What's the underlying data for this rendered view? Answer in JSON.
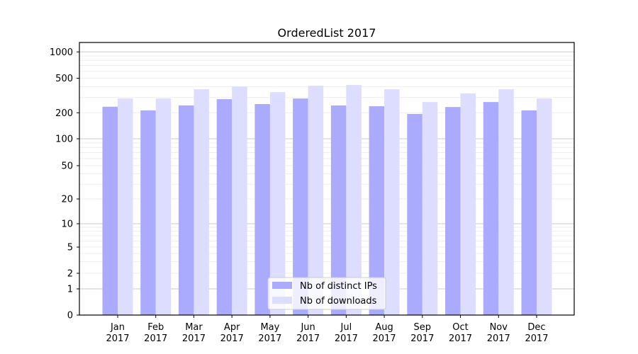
{
  "chart_data": {
    "type": "bar",
    "title": "OrderedList 2017",
    "xlabel": "",
    "ylabel": "",
    "yscale": "symlog",
    "ylim": [
      0,
      1300
    ],
    "yticks": [
      0,
      1,
      2,
      5,
      10,
      20,
      50,
      100,
      200,
      500,
      1000
    ],
    "ytick_labels": [
      "0",
      "1",
      "2",
      "5",
      "10",
      "20",
      "50",
      "100",
      "200",
      "500",
      "1000"
    ],
    "grid": true,
    "legend_position": "bottom-center",
    "categories": [
      "Jan\n2017",
      "Feb\n2017",
      "Mar\n2017",
      "Apr\n2017",
      "May\n2017",
      "Jun\n2017",
      "Jul\n2017",
      "Aug\n2017",
      "Sep\n2017",
      "Oct\n2017",
      "Nov\n2017",
      "Dec\n2017"
    ],
    "category_months": [
      "Jan",
      "Feb",
      "Mar",
      "Apr",
      "May",
      "Jun",
      "Jul",
      "Aug",
      "Sep",
      "Oct",
      "Nov",
      "Dec"
    ],
    "category_years": [
      "2017",
      "2017",
      "2017",
      "2017",
      "2017",
      "2017",
      "2017",
      "2017",
      "2017",
      "2017",
      "2017",
      "2017"
    ],
    "series": [
      {
        "name": "Nb of distinct IPs",
        "color": "#aaaaff",
        "values": [
          235,
          213,
          243,
          287,
          252,
          292,
          243,
          238,
          194,
          233,
          266,
          213
        ]
      },
      {
        "name": "Nb of downloads",
        "color": "#ddddff",
        "values": [
          292,
          292,
          373,
          402,
          346,
          410,
          418,
          373,
          266,
          334,
          373,
          292
        ]
      }
    ]
  }
}
